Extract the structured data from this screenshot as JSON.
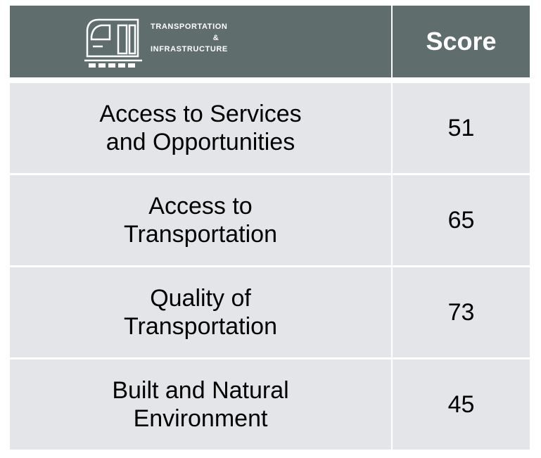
{
  "header": {
    "title_lines": [
      "TRANSPORTATION",
      "&",
      "INFRASTRUCTURE"
    ],
    "score_heading": "Score"
  },
  "table": {
    "rows": [
      {
        "label_lines": [
          "Access to Services",
          "and Opportunities"
        ],
        "score": "51"
      },
      {
        "label_lines": [
          "Access to",
          "Transportation"
        ],
        "score": "65"
      },
      {
        "label_lines": [
          "Quality of",
          "Transportation"
        ],
        "score": "73"
      },
      {
        "label_lines": [
          "Built and Natural",
          "Environment"
        ],
        "score": "45"
      }
    ]
  }
}
